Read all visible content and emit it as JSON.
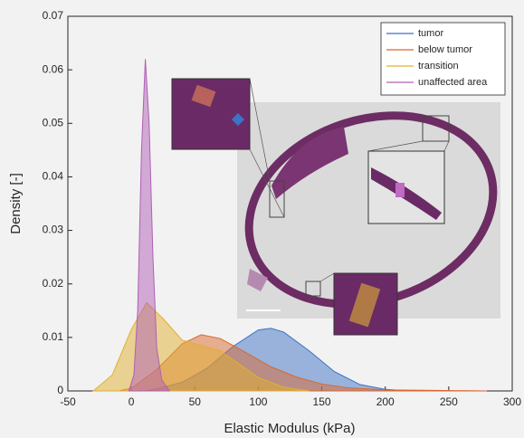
{
  "chart_data": {
    "type": "area",
    "xlabel": "Elastic Modulus (kPa)",
    "ylabel": "Density [-]",
    "xlim": [
      -50,
      300
    ],
    "xticks": [
      -50,
      0,
      50,
      100,
      150,
      200,
      250,
      300
    ],
    "ylim": [
      0,
      0.07
    ],
    "yticks": [
      0,
      0.01,
      0.02,
      0.03,
      0.04,
      0.05,
      0.06,
      0.07
    ],
    "legend": "upper right",
    "series": [
      {
        "name": "tumor",
        "color": "#3d72c4",
        "x": [
          10,
          20,
          40,
          60,
          80,
          100,
          110,
          120,
          140,
          160,
          180,
          200,
          220
        ],
        "values": [
          0,
          0.0004,
          0.0016,
          0.0043,
          0.0083,
          0.0114,
          0.0117,
          0.011,
          0.0075,
          0.0036,
          0.0012,
          0.0003,
          0
        ]
      },
      {
        "name": "below tumor",
        "color": "#d9682f",
        "x": [
          -10,
          0,
          20,
          40,
          55,
          70,
          90,
          110,
          130,
          150,
          170,
          200,
          240,
          280
        ],
        "values": [
          0,
          0.0005,
          0.004,
          0.0088,
          0.0105,
          0.0098,
          0.0072,
          0.0045,
          0.0026,
          0.0013,
          0.0006,
          0.0002,
          0.0001,
          0
        ]
      },
      {
        "name": "transition",
        "color": "#e0b030",
        "x": [
          -30,
          -15,
          0,
          12,
          25,
          40,
          55,
          70,
          85,
          100,
          120,
          140
        ],
        "values": [
          0,
          0.003,
          0.0115,
          0.0165,
          0.0135,
          0.0095,
          0.0085,
          0.0075,
          0.005,
          0.0025,
          0.0007,
          0
        ]
      },
      {
        "name": "unaffected area",
        "color": "#b05fb5",
        "x": [
          -2,
          2,
          5,
          8,
          11,
          14,
          17,
          20,
          24,
          30
        ],
        "values": [
          0,
          0.003,
          0.015,
          0.045,
          0.062,
          0.05,
          0.025,
          0.008,
          0.002,
          0
        ]
      }
    ]
  }
}
